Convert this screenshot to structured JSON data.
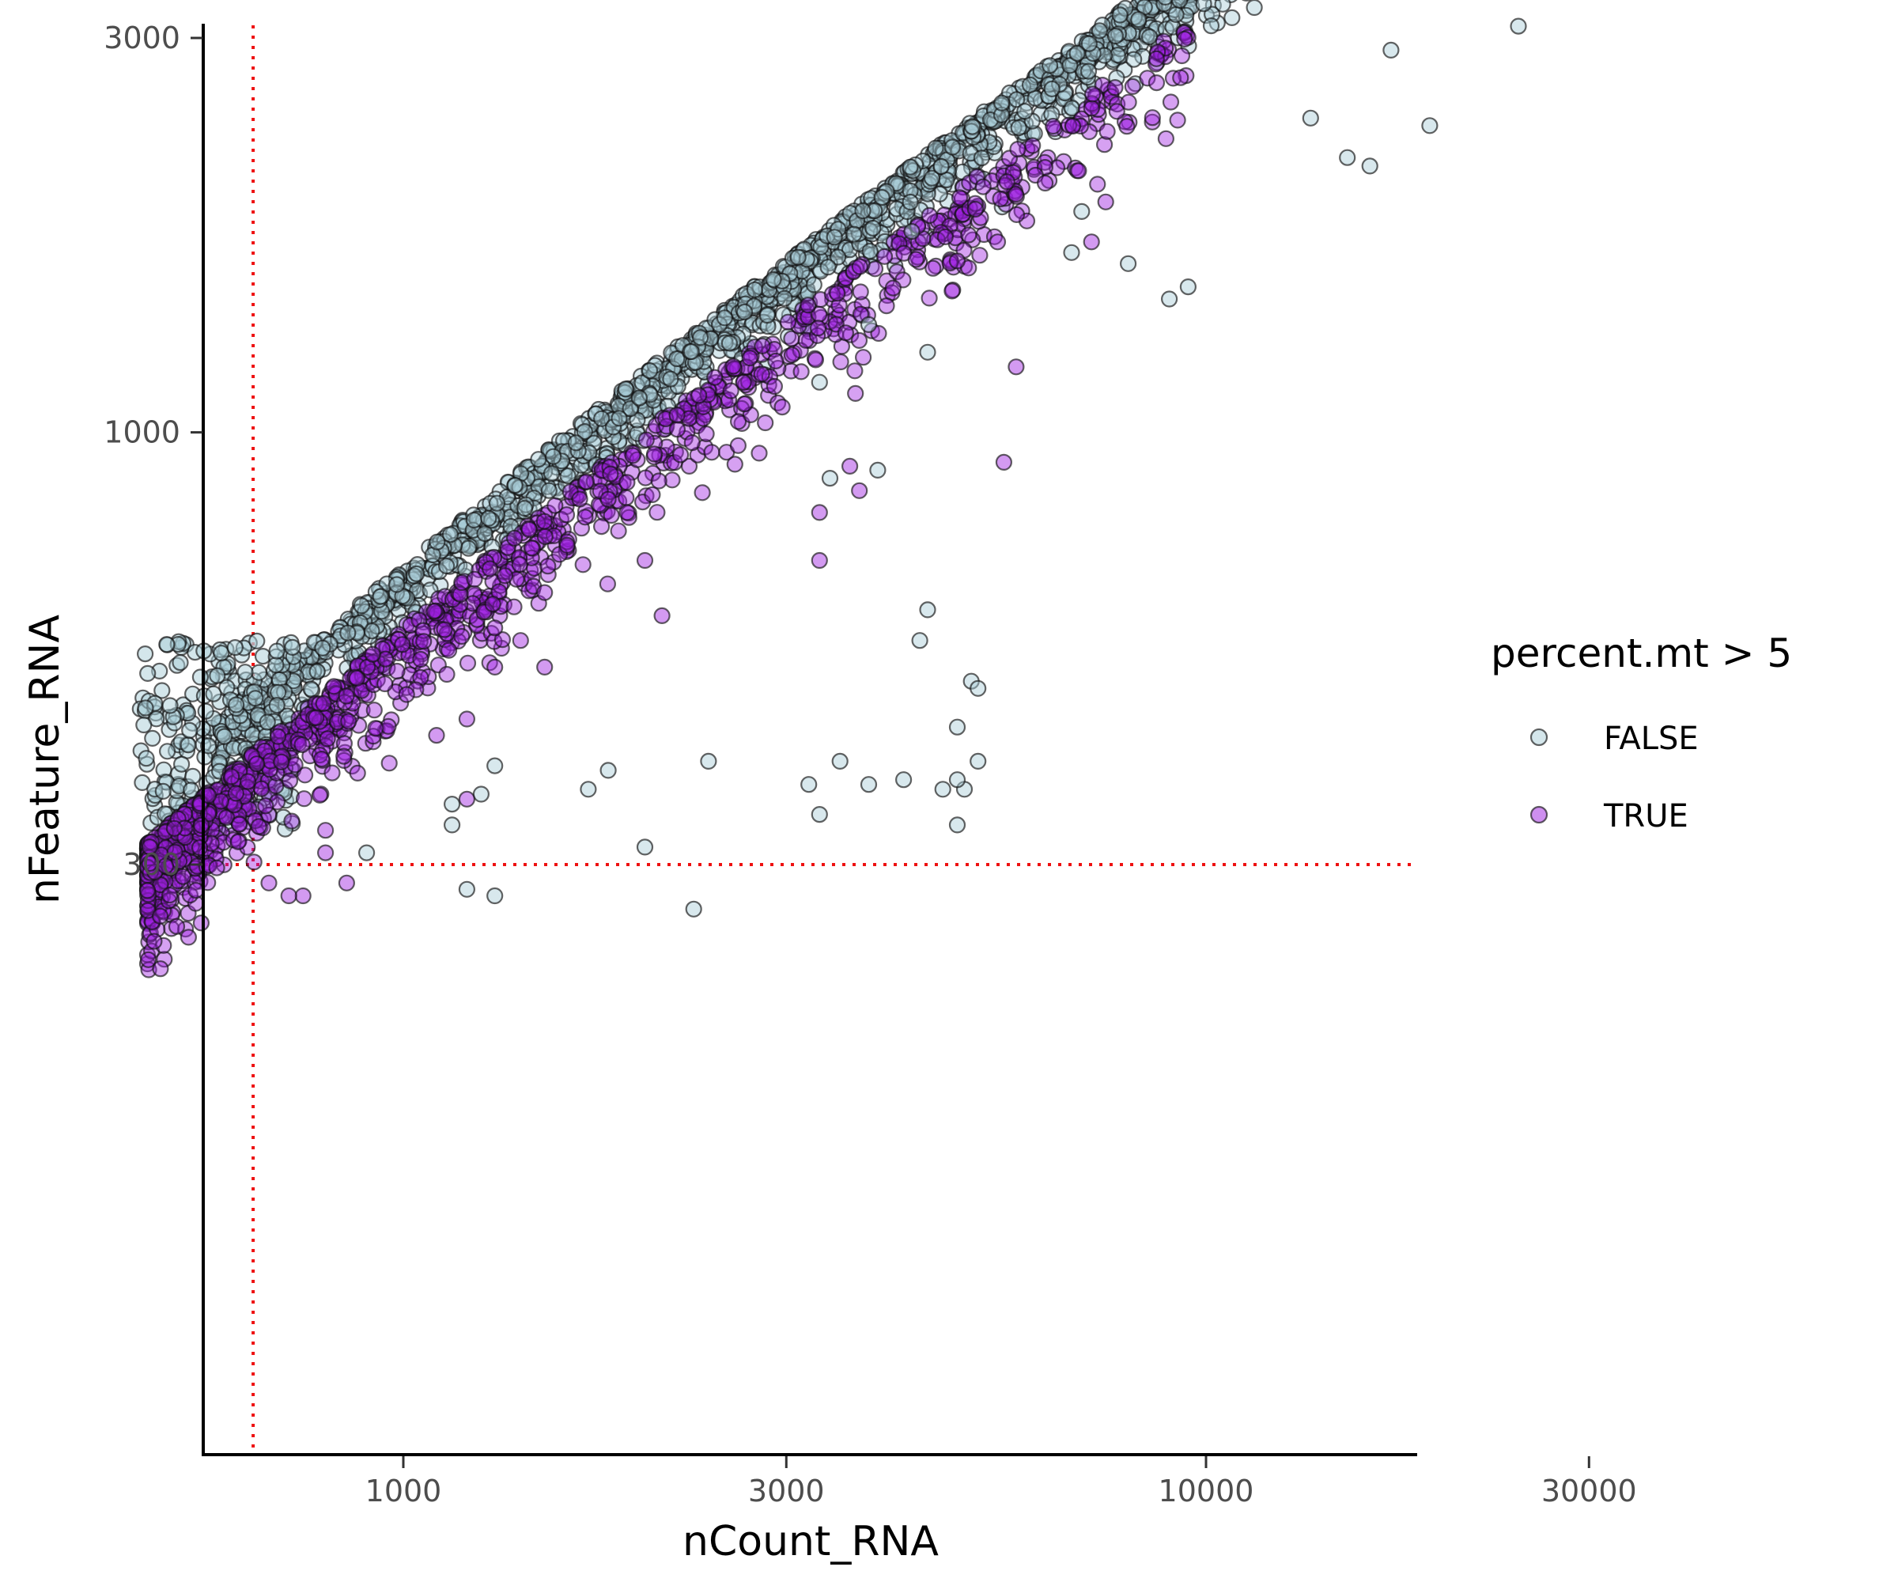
{
  "chart_data": {
    "type": "scatter",
    "title": "",
    "xlabel": "nCount_RNA",
    "ylabel": "nFeature_RNA",
    "x_scale": "log10",
    "y_scale": "log10",
    "xlim": [
      450,
      75000
    ],
    "ylim": [
      200,
      7000
    ],
    "x_ticks": [
      1000,
      3000,
      10000,
      30000
    ],
    "x_tick_labels": [
      "1000",
      "3000",
      "10000",
      "30000"
    ],
    "y_ticks": [
      300,
      1000,
      3000
    ],
    "y_tick_labels": [
      "300",
      "1000",
      "3000"
    ],
    "grid": false,
    "reference_lines": {
      "x": 650,
      "y": 300,
      "color": "#ee1111",
      "style": "dotted"
    },
    "legend": {
      "title": "percent.mt > 5",
      "placement": "right",
      "entries": [
        {
          "label": "FALSE",
          "fill": "#a9cdd8"
        },
        {
          "label": "TRUE",
          "fill": "#9d1fe0"
        }
      ]
    },
    "series": [
      {
        "name": "FALSE",
        "fill": "#a9cdd8",
        "outliers": [
          [
            16000,
            2100
          ],
          [
            15000,
            2150
          ],
          [
            19000,
            2350
          ],
          [
            24500,
            3100
          ],
          [
            17000,
            2900
          ],
          [
            13500,
            2400
          ],
          [
            9000,
            1450
          ],
          [
            9500,
            1500
          ],
          [
            8000,
            1600
          ],
          [
            6800,
            1650
          ],
          [
            7000,
            1850
          ],
          [
            4300,
            1750
          ],
          [
            3800,
            1350
          ],
          [
            4500,
            1250
          ],
          [
            3400,
            880
          ],
          [
            3900,
            900
          ],
          [
            3300,
            1150
          ],
          [
            4400,
            560
          ],
          [
            4500,
            610
          ],
          [
            5100,
            500
          ],
          [
            5200,
            490
          ],
          [
            4900,
            440
          ],
          [
            5200,
            400
          ],
          [
            5000,
            370
          ],
          [
            4900,
            380
          ],
          [
            4700,
            370
          ],
          [
            3500,
            400
          ],
          [
            3200,
            375
          ],
          [
            4200,
            380
          ],
          [
            3800,
            375
          ],
          [
            3300,
            345
          ],
          [
            4900,
            335
          ],
          [
            2400,
            400
          ],
          [
            1800,
            390
          ],
          [
            1700,
            370
          ],
          [
            1300,
            395
          ],
          [
            1250,
            365
          ],
          [
            1150,
            355
          ],
          [
            1150,
            335
          ],
          [
            2000,
            315
          ],
          [
            900,
            310
          ],
          [
            1200,
            280
          ],
          [
            1300,
            275
          ],
          [
            2300,
            265
          ]
        ]
      },
      {
        "name": "TRUE",
        "fill": "#9d1fe0",
        "outliers": [
          [
            7500,
            1900
          ],
          [
            7200,
            1700
          ],
          [
            5500,
            1700
          ],
          [
            5800,
            1200
          ],
          [
            5600,
            920
          ],
          [
            3600,
            910
          ],
          [
            3700,
            850
          ],
          [
            3300,
            800
          ],
          [
            3300,
            700
          ],
          [
            2000,
            700
          ],
          [
            2100,
            600
          ],
          [
            1900,
            870
          ],
          [
            1900,
            800
          ],
          [
            1800,
            830
          ],
          [
            1600,
            730
          ],
          [
            1500,
            640
          ],
          [
            1500,
            520
          ],
          [
            1400,
            560
          ],
          [
            1300,
            520
          ],
          [
            1300,
            580
          ],
          [
            1200,
            450
          ],
          [
            1100,
            430
          ],
          [
            1200,
            360
          ],
          [
            800,
            330
          ],
          [
            800,
            310
          ],
          [
            850,
            285
          ],
          [
            750,
            275
          ],
          [
            720,
            275
          ],
          [
            680,
            285
          ],
          [
            560,
            255
          ],
          [
            540,
            245
          ]
        ]
      }
    ]
  }
}
